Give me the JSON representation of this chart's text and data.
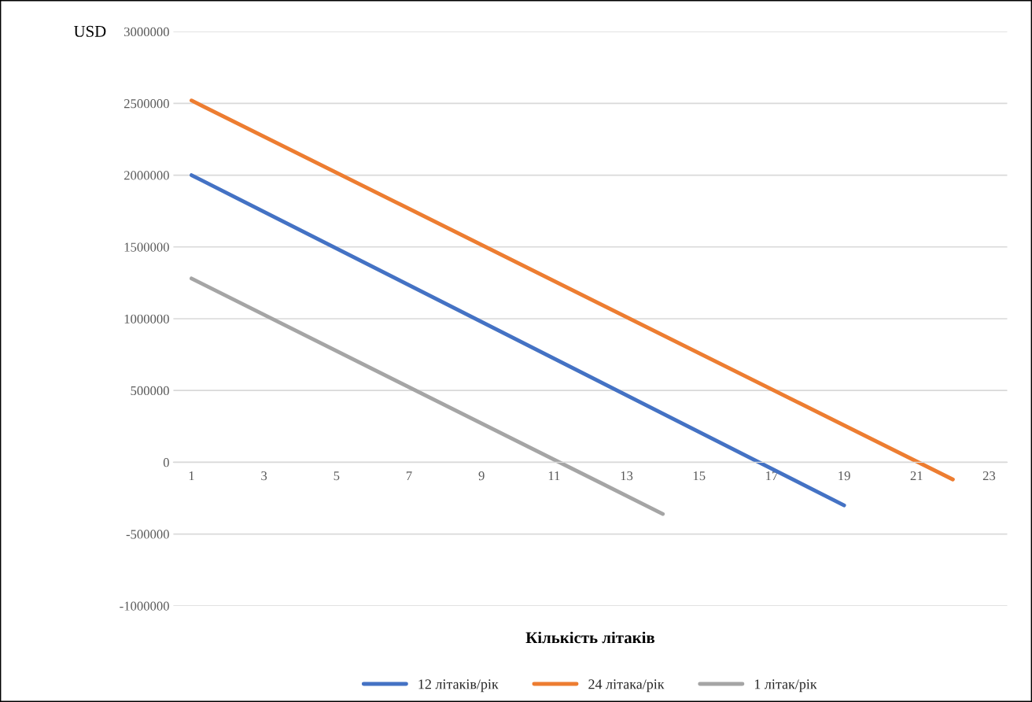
{
  "chart_data": {
    "type": "line",
    "xlabel": "Кількість літаків",
    "ylabel": "USD",
    "xlim": [
      0.5,
      23.5
    ],
    "xticks": [
      1,
      3,
      5,
      7,
      9,
      11,
      13,
      15,
      17,
      19,
      21,
      23
    ],
    "ylim": [
      -1000000,
      3000000
    ],
    "yticks": [
      -1000000,
      -500000,
      0,
      500000,
      1000000,
      1500000,
      2000000,
      2500000,
      3000000
    ],
    "grid": "y",
    "legend": "bottom",
    "marker": "none",
    "line_style": "solid",
    "series": [
      {
        "name": "12 літаків/рік",
        "color": "#4472c4",
        "x": [
          1,
          19
        ],
        "values": [
          2000000,
          -300000
        ]
      },
      {
        "name": "24 літака/рік",
        "color": "#ed7d31",
        "x": [
          1,
          22
        ],
        "values": [
          2520000,
          -120000
        ]
      },
      {
        "name": "1 літак/рік",
        "color": "#a5a5a5",
        "x": [
          1,
          14
        ],
        "values": [
          1280000,
          -360000
        ]
      }
    ]
  }
}
